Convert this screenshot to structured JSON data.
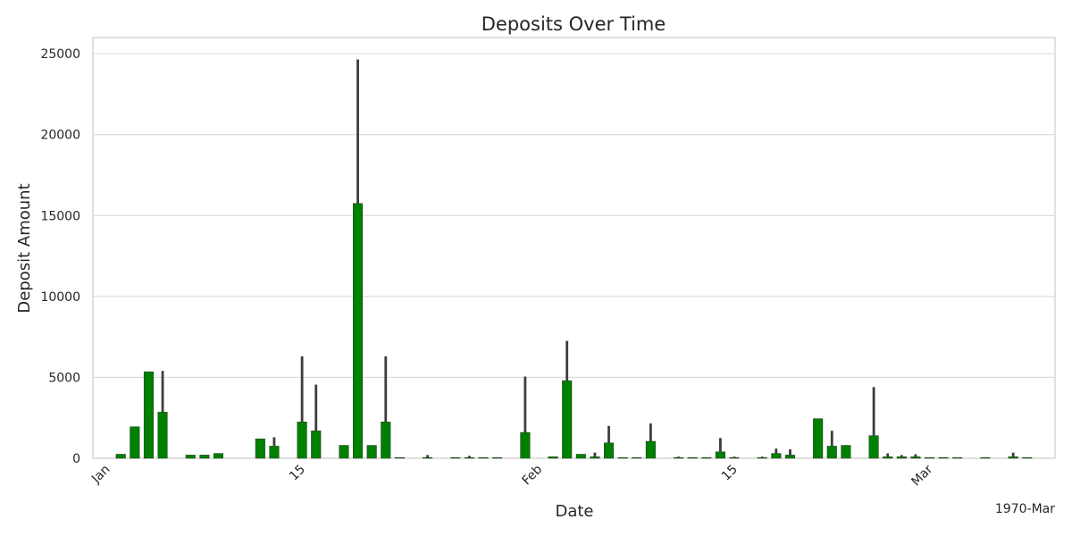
{
  "chart_data": {
    "type": "bar",
    "title": "Deposits Over Time",
    "xlabel": "Date",
    "ylabel": "Deposit Amount",
    "x_offset_label": "1970-Mar",
    "ylim": [
      0,
      26000
    ],
    "yticks": [
      0,
      5000,
      10000,
      15000,
      20000,
      25000
    ],
    "xticks": [
      {
        "date": "1970-01-01",
        "label": "Jan"
      },
      {
        "date": "1970-01-15",
        "label": "15"
      },
      {
        "date": "1970-02-01",
        "label": "Feb"
      },
      {
        "date": "1970-02-15",
        "label": "15"
      },
      {
        "date": "1970-03-01",
        "label": "Mar"
      }
    ],
    "x_range": [
      "1969-12-31",
      "1970-03-10"
    ],
    "grid": true,
    "bar_color": "#008000",
    "error_color": "#3d3d3d",
    "series": [
      {
        "x": [
          "1970-01-02",
          "1970-01-03",
          "1970-01-04",
          "1970-01-05",
          "1970-01-07",
          "1970-01-08",
          "1970-01-09",
          "1970-01-12",
          "1970-01-13",
          "1970-01-15",
          "1970-01-16",
          "1970-01-18",
          "1970-01-19",
          "1970-01-20",
          "1970-01-21",
          "1970-01-22",
          "1970-01-24",
          "1970-01-26",
          "1970-01-27",
          "1970-01-28",
          "1970-01-29",
          "1970-01-31",
          "1970-02-02",
          "1970-02-03",
          "1970-02-04",
          "1970-02-05",
          "1970-02-06",
          "1970-02-07",
          "1970-02-08",
          "1970-02-09",
          "1970-02-11",
          "1970-02-12",
          "1970-02-13",
          "1970-02-14",
          "1970-02-15",
          "1970-02-17",
          "1970-02-18",
          "1970-02-19",
          "1970-02-21",
          "1970-02-22",
          "1970-02-23",
          "1970-02-25",
          "1970-02-26",
          "1970-02-27",
          "1970-02-28",
          "1970-03-01",
          "1970-03-02",
          "1970-03-03",
          "1970-03-05",
          "1970-03-07",
          "1970-03-08"
        ],
        "y": [
          250,
          1950,
          5350,
          2850,
          200,
          200,
          300,
          1200,
          750,
          2250,
          1700,
          800,
          15750,
          800,
          2250,
          50,
          50,
          50,
          50,
          50,
          50,
          1600,
          100,
          4800,
          250,
          100,
          950,
          50,
          50,
          1050,
          50,
          50,
          50,
          400,
          50,
          50,
          300,
          200,
          2450,
          750,
          800,
          1400,
          100,
          100,
          100,
          50,
          50,
          50,
          50,
          100,
          50
        ],
        "yerr_high": [
          250,
          1950,
          5350,
          5400,
          200,
          200,
          300,
          1200,
          1300,
          6300,
          4550,
          800,
          24650,
          800,
          6300,
          50,
          200,
          50,
          150,
          50,
          50,
          5050,
          100,
          7250,
          250,
          350,
          2000,
          50,
          50,
          2150,
          100,
          50,
          50,
          1250,
          100,
          100,
          600,
          550,
          2450,
          1700,
          800,
          4400,
          300,
          200,
          250,
          50,
          50,
          50,
          50,
          350,
          50
        ]
      }
    ]
  }
}
